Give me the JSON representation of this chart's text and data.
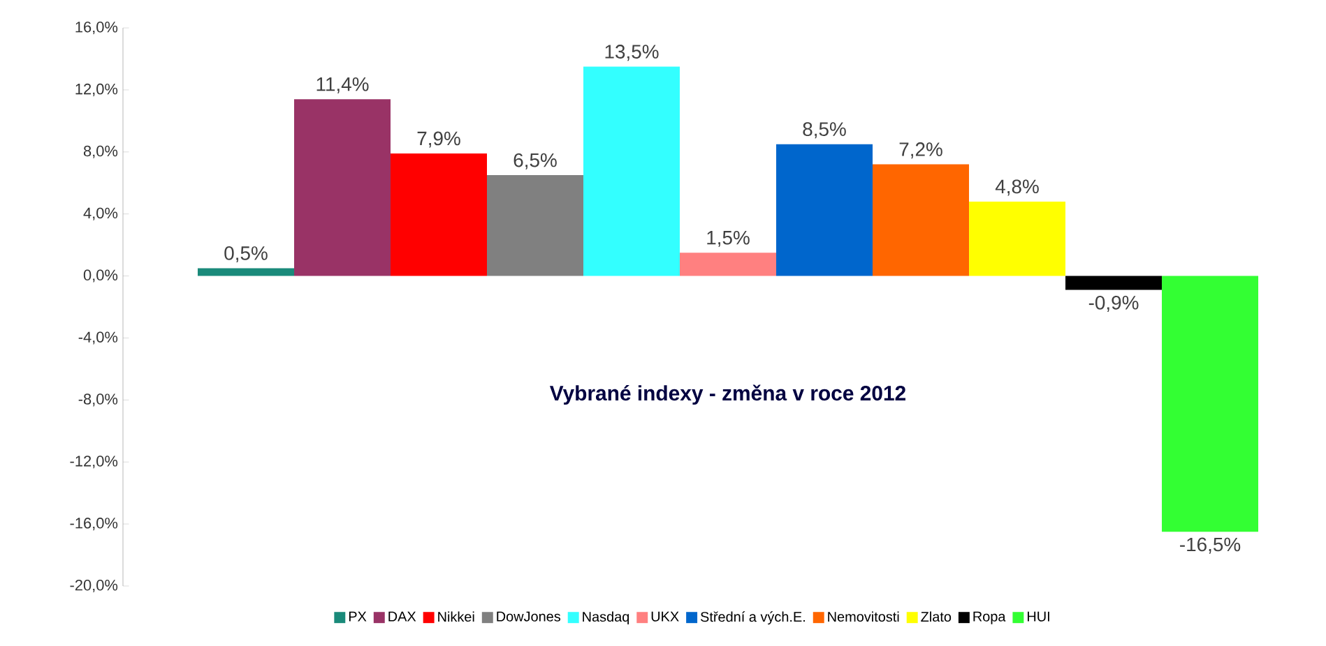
{
  "chart_data": {
    "type": "bar",
    "title": "Vybrané indexy - změna v roce 2012",
    "categories": [
      null
    ],
    "series": [
      {
        "name": "PX",
        "color": "#1a8a7a",
        "values": [
          0.5
        ],
        "value_labels": [
          "0,5%"
        ]
      },
      {
        "name": "DAX",
        "color": "#993366",
        "values": [
          11.4
        ],
        "value_labels": [
          "11,4%"
        ]
      },
      {
        "name": "Nikkei",
        "color": "#ff0000",
        "values": [
          7.9
        ],
        "value_labels": [
          "7,9%"
        ]
      },
      {
        "name": "DowJones",
        "color": "#808080",
        "values": [
          6.5
        ],
        "value_labels": [
          "6,5%"
        ]
      },
      {
        "name": "Nasdaq",
        "color": "#33ffff",
        "values": [
          13.5
        ],
        "value_labels": [
          "13,5%"
        ]
      },
      {
        "name": "UKX",
        "color": "#ff8080",
        "values": [
          1.5
        ],
        "value_labels": [
          "1,5%"
        ]
      },
      {
        "name": "Střední a vých.E.",
        "color": "#0066cc",
        "values": [
          8.5
        ],
        "value_labels": [
          "8,5%"
        ]
      },
      {
        "name": "Nemovitosti",
        "color": "#ff6600",
        "values": [
          7.2
        ],
        "value_labels": [
          "7,2%"
        ]
      },
      {
        "name": "Zlato",
        "color": "#ffff00",
        "values": [
          4.8
        ],
        "value_labels": [
          "4,8%"
        ]
      },
      {
        "name": "Ropa",
        "color": "#000000",
        "values": [
          -0.9
        ],
        "value_labels": [
          "-0,9%"
        ]
      },
      {
        "name": "HUI",
        "color": "#33ff33",
        "values": [
          -16.5
        ],
        "value_labels": [
          "-16,5%"
        ]
      }
    ],
    "ylim": [
      -20,
      16
    ],
    "yticks": [
      {
        "value": -20,
        "label": "-20,0%"
      },
      {
        "value": -16,
        "label": "-16,0%"
      },
      {
        "value": -12,
        "label": "-12,0%"
      },
      {
        "value": -8,
        "label": "-8,0%"
      },
      {
        "value": -4,
        "label": "-4,0%"
      },
      {
        "value": 0,
        "label": "0,0%"
      },
      {
        "value": 4,
        "label": "4,0%"
      },
      {
        "value": 8,
        "label": "8,0%"
      },
      {
        "value": 12,
        "label": "12,0%"
      },
      {
        "value": 16,
        "label": "16,0%"
      }
    ],
    "tick_labels": "y",
    "grid": false,
    "legend": "bottom"
  }
}
